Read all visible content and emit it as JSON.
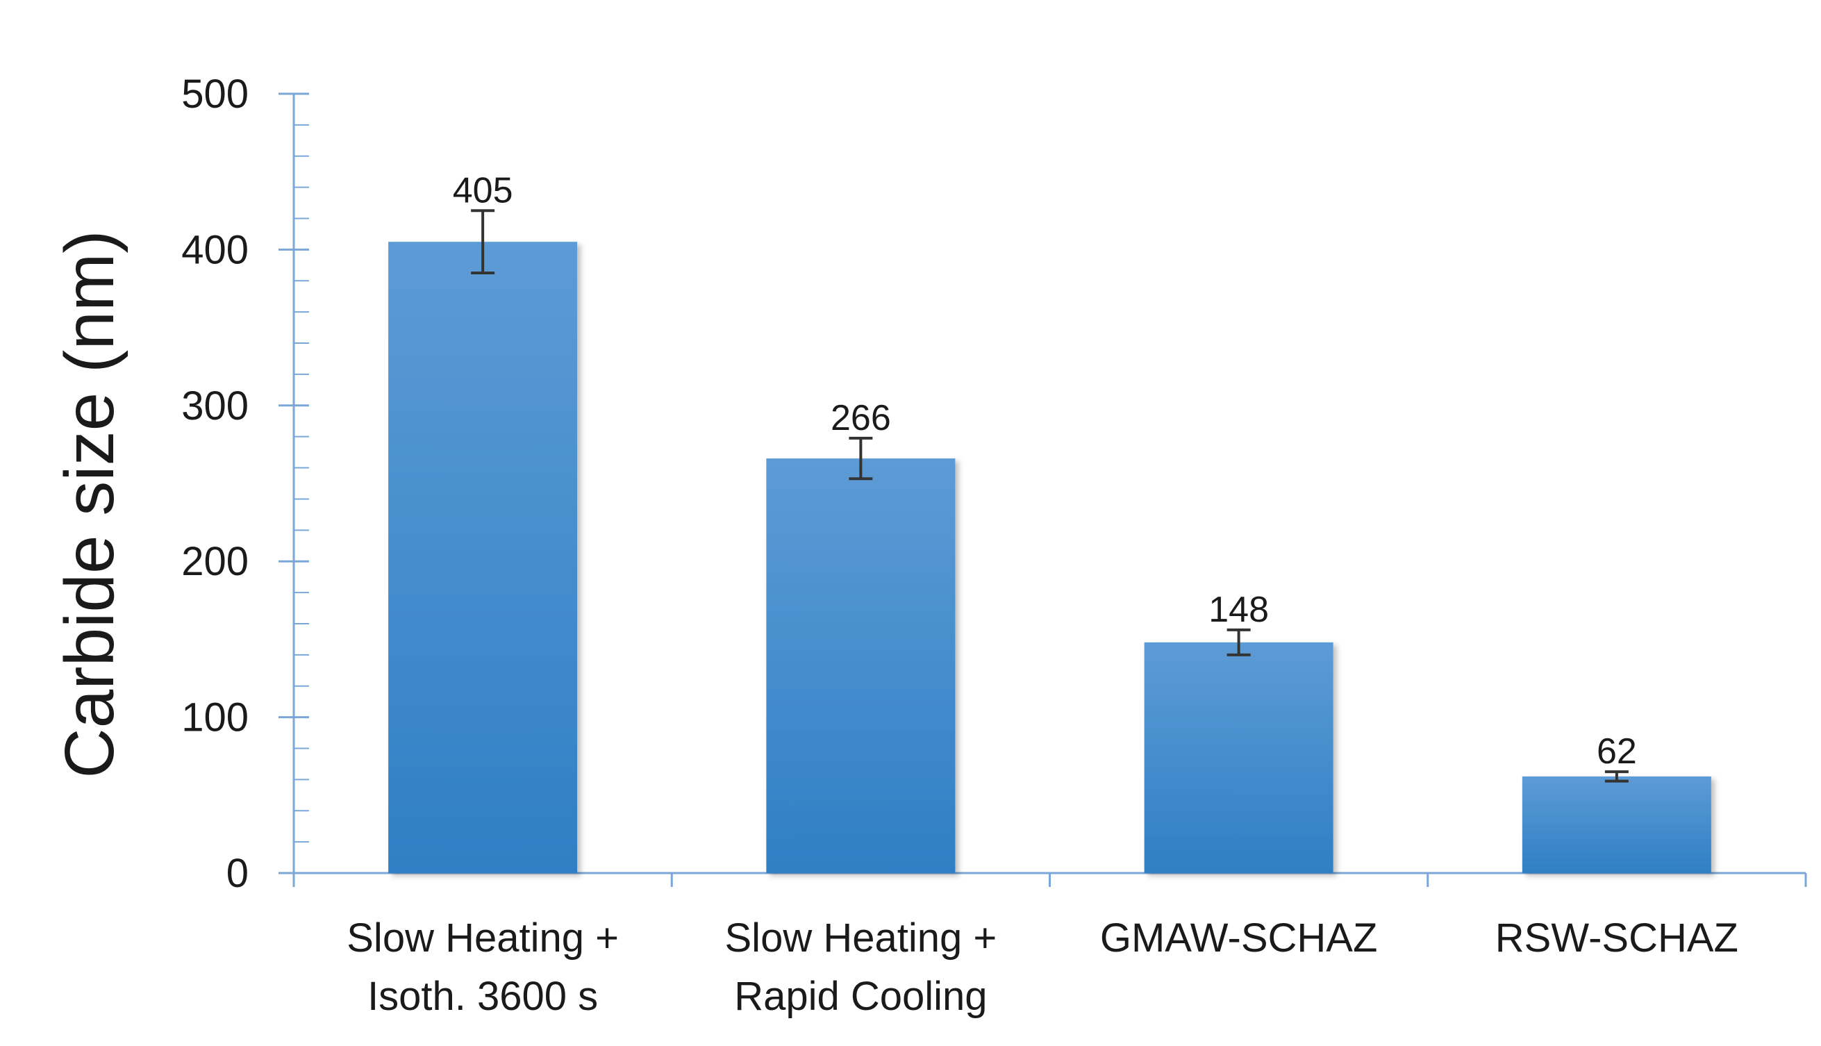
{
  "chart_data": {
    "type": "bar",
    "title": "",
    "xlabel": "",
    "ylabel": "Carbide size (nm)",
    "ylim": [
      0,
      500
    ],
    "yticks": [
      0,
      100,
      200,
      300,
      400,
      500
    ],
    "yminor_step": 20,
    "categories": [
      [
        "Slow Heating +",
        "Isoth. 3600 s"
      ],
      [
        "Slow Heating +",
        "Rapid Cooling"
      ],
      [
        "GMAW-SCHAZ"
      ],
      [
        "RSW-SCHAZ"
      ]
    ],
    "values": [
      405,
      266,
      148,
      62
    ],
    "error_bars": [
      20,
      13,
      8,
      3
    ],
    "data_labels": [
      "405",
      "266",
      "148",
      "62"
    ],
    "legend": "none",
    "grid": false,
    "colors": {
      "bar_top": "#5d9bd6",
      "bar_bottom": "#2f7fc4",
      "axis": "#7aa7d8",
      "error_bar": "#333333"
    }
  }
}
